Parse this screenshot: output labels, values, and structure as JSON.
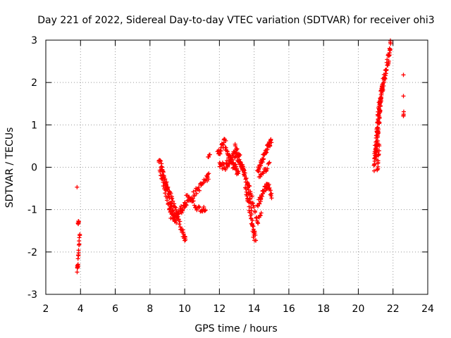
{
  "chart_data": {
    "type": "scatter",
    "title": "Day 221 of 2022, Sidereal Day-to-day VTEC variation (SDTVAR) for receiver ohi3",
    "xlabel": "GPS time / hours",
    "ylabel": "SDTVAR / TECUs",
    "xlim": [
      2,
      24
    ],
    "ylim": [
      -3,
      3
    ],
    "xticks": [
      2,
      4,
      6,
      8,
      10,
      12,
      14,
      16,
      18,
      20,
      22,
      24
    ],
    "yticks": [
      -3,
      -2,
      -1,
      0,
      1,
      2,
      3
    ],
    "grid": true,
    "marker": "+",
    "marker_color": "#ff0000",
    "segments": [
      {
        "x": [
          3.8,
          3.85,
          3.9,
          3.95
        ],
        "y": [
          -2.45,
          -2.3,
          -1.9,
          -1.55
        ],
        "jitter": 0.08,
        "n": 20
      },
      {
        "x": [
          3.85,
          3.9
        ],
        "y": [
          -1.35,
          -1.25
        ],
        "jitter": 0.05,
        "n": 5
      },
      {
        "x": [
          3.8
        ],
        "y": [
          -0.47
        ],
        "jitter": 0,
        "n": 1
      },
      {
        "x": [
          8.5,
          8.7,
          9.0,
          9.2,
          9.4,
          9.6,
          9.8,
          10.0
        ],
        "y": [
          0.2,
          -0.3,
          -0.8,
          -1.15,
          -1.2,
          -1.1,
          -1.0,
          -0.9
        ],
        "jitter": 0.12,
        "n": 60
      },
      {
        "x": [
          8.6,
          8.8,
          9.0,
          9.3,
          9.6,
          9.9,
          10.05
        ],
        "y": [
          0.1,
          -0.2,
          -0.5,
          -0.8,
          -1.2,
          -1.55,
          -1.72
        ],
        "jitter": 0.1,
        "n": 60
      },
      {
        "x": [
          8.7,
          8.9,
          9.1,
          9.3,
          9.5
        ],
        "y": [
          -0.1,
          -0.4,
          -0.7,
          -1.05,
          -1.25
        ],
        "jitter": 0.1,
        "n": 40
      },
      {
        "x": [
          10.0,
          10.3,
          10.6,
          10.9,
          11.2,
          11.4
        ],
        "y": [
          -0.9,
          -0.75,
          -0.6,
          -0.45,
          -0.3,
          -0.2
        ],
        "jitter": 0.1,
        "n": 40
      },
      {
        "x": [
          10.1,
          10.4,
          10.7,
          11.0,
          11.2
        ],
        "y": [
          -0.6,
          -0.8,
          -0.95,
          -1.0,
          -0.95
        ],
        "jitter": 0.08,
        "n": 25
      },
      {
        "x": [
          11.35,
          11.45
        ],
        "y": [
          0.25,
          0.28
        ],
        "jitter": 0.03,
        "n": 4
      },
      {
        "x": [
          11.9,
          12.1,
          12.3,
          12.5,
          12.7,
          12.9,
          13.1
        ],
        "y": [
          0.3,
          0.45,
          0.6,
          0.3,
          0.1,
          0.0,
          -0.2
        ],
        "jitter": 0.12,
        "n": 60
      },
      {
        "x": [
          12.0,
          12.3,
          12.6,
          12.9,
          13.2,
          13.5
        ],
        "y": [
          0.1,
          0.0,
          0.15,
          0.35,
          0.1,
          -0.2
        ],
        "jitter": 0.12,
        "n": 60
      },
      {
        "x": [
          12.9,
          13.2,
          13.5,
          13.8,
          14.0
        ],
        "y": [
          0.5,
          0.2,
          -0.2,
          -0.8,
          -1.75
        ],
        "jitter": 0.1,
        "n": 50
      },
      {
        "x": [
          13.5,
          13.7,
          13.9,
          14.1
        ],
        "y": [
          -0.5,
          -0.9,
          -1.4,
          -1.7
        ],
        "jitter": 0.08,
        "n": 30
      },
      {
        "x": [
          13.6,
          13.8,
          14.0,
          14.2,
          14.4
        ],
        "y": [
          -0.3,
          -0.6,
          -1.0,
          -1.3,
          -1.1
        ],
        "jitter": 0.08,
        "n": 25
      },
      {
        "x": [
          14.2,
          14.4,
          14.6,
          14.8,
          15.0
        ],
        "y": [
          -0.1,
          0.1,
          0.3,
          0.5,
          0.6
        ],
        "jitter": 0.1,
        "n": 45
      },
      {
        "x": [
          14.2,
          14.4,
          14.6,
          14.8,
          15.0
        ],
        "y": [
          -0.9,
          -0.7,
          -0.5,
          -0.4,
          -0.7
        ],
        "jitter": 0.1,
        "n": 40
      },
      {
        "x": [
          14.3,
          14.6,
          14.9
        ],
        "y": [
          -0.2,
          -0.1,
          0.1
        ],
        "jitter": 0.08,
        "n": 15
      },
      {
        "x": [
          20.9,
          21.0,
          21.1,
          21.2,
          21.3,
          21.5,
          21.7,
          21.85
        ],
        "y": [
          0.0,
          0.5,
          1.0,
          1.4,
          1.7,
          2.1,
          2.5,
          2.97
        ],
        "jitter": 0.15,
        "n": 110
      },
      {
        "x": [
          21.0,
          21.1,
          21.2,
          21.3,
          21.4
        ],
        "y": [
          0.2,
          0.6,
          1.1,
          1.6,
          2.0
        ],
        "jitter": 0.12,
        "n": 60
      },
      {
        "x": [
          21.1,
          21.15,
          21.2
        ],
        "y": [
          -0.1,
          0.2,
          0.5
        ],
        "jitter": 0.08,
        "n": 15
      },
      {
        "x": [
          22.6
        ],
        "y": [
          2.18
        ],
        "jitter": 0,
        "n": 1
      },
      {
        "x": [
          22.6
        ],
        "y": [
          1.68
        ],
        "jitter": 0,
        "n": 1
      },
      {
        "x": [
          22.6,
          22.62
        ],
        "y": [
          1.2,
          1.3
        ],
        "jitter": 0.02,
        "n": 4
      }
    ]
  }
}
